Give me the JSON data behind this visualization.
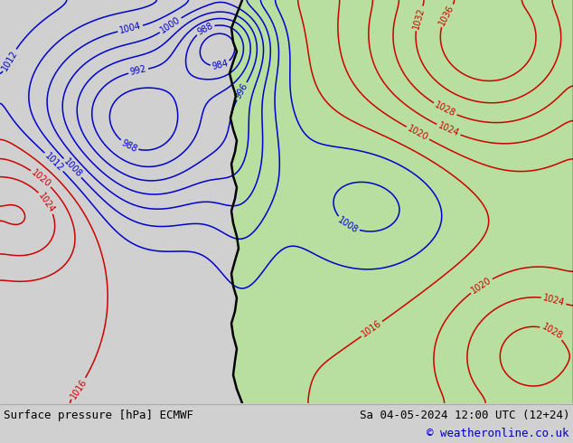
{
  "title_left": "Surface pressure [hPa] ECMWF",
  "title_right": "Sa 04-05-2024 12:00 UTC (12+24)",
  "copyright": "© weatheronline.co.uk",
  "bg_color": "#d0d0d0",
  "land_color": "#b8dfa0",
  "ocean_color": "#d0d0d0",
  "isobar_blue_color": "#0000cc",
  "isobar_red_color": "#cc0000",
  "isobar_black_color": "#000000",
  "bottom_bg": "#e8e8e8",
  "copyright_color": "#0000bb",
  "figsize": [
    6.34,
    4.9
  ],
  "dpi": 100
}
